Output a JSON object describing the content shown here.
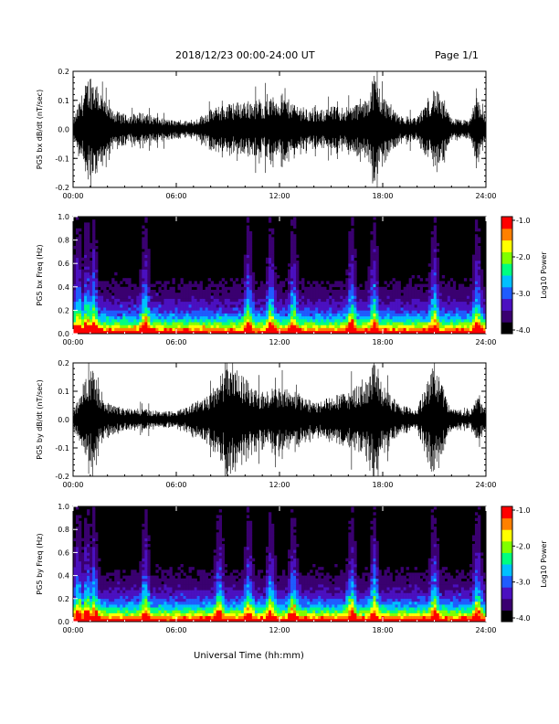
{
  "header": {
    "title": "2018/12/23  00:00-24:00 UT",
    "page": "Page 1/1"
  },
  "xlabel": "Universal Time (hh:mm)",
  "colors": {
    "trace": "#000000",
    "spectrogram_background": "#000000",
    "colormap": [
      "#000000",
      "#3a0070",
      "#4b10c0",
      "#1f5cff",
      "#00c0ff",
      "#00ff80",
      "#80ff00",
      "#ffff00",
      "#ff8000",
      "#ff0000"
    ]
  },
  "chart_data": [
    {
      "type": "line",
      "ylabel": "PG5 bx dB/dt (nT/sec)",
      "xlim": [
        0,
        24
      ],
      "ylim": [
        -0.2,
        0.2
      ],
      "xticks": [
        "00:00",
        "06:00",
        "12:00",
        "18:00",
        "24:00"
      ],
      "yticks": [
        "0.2",
        "0.1",
        "0.0",
        "-0.1",
        "-0.2"
      ],
      "grid": false,
      "envelope": {
        "hours": [
          0,
          0.5,
          1,
          1.5,
          2,
          3,
          4,
          5,
          6,
          7,
          8,
          9,
          10,
          11,
          12,
          13,
          14,
          15,
          16,
          17,
          17.5,
          18,
          19,
          20,
          21,
          22,
          23,
          23.5,
          24
        ],
        "amplitude": [
          0.03,
          0.12,
          0.2,
          0.15,
          0.08,
          0.05,
          0.06,
          0.04,
          0.03,
          0.03,
          0.07,
          0.09,
          0.1,
          0.1,
          0.12,
          0.09,
          0.06,
          0.08,
          0.08,
          0.1,
          0.2,
          0.12,
          0.05,
          0.04,
          0.15,
          0.04,
          0.03,
          0.12,
          0.05
        ]
      }
    },
    {
      "type": "heatmap",
      "ylabel": "PG5 bx Freq (Hz)",
      "xlim": [
        0,
        24
      ],
      "ylim": [
        0,
        1
      ],
      "xticks": [
        "00:00",
        "06:00",
        "12:00",
        "18:00",
        "24:00"
      ],
      "yticks": [
        "1.0",
        "0.8",
        "0.6",
        "0.4",
        "0.2",
        "0.0"
      ],
      "colorbar": {
        "label": "Log10 Power",
        "range": [
          -4.0,
          -1.0
        ],
        "ticks": [
          "-1.0",
          "-2.0",
          "-3.0",
          "-4.0"
        ]
      },
      "bright_bands_hours": [
        0.3,
        0.8,
        1.2,
        4.2,
        10.2,
        11.5,
        12.8,
        16.2,
        17.5,
        21.0,
        23.5
      ]
    },
    {
      "type": "line",
      "ylabel": "PG5 by dB/dt (nT/sec)",
      "xlim": [
        0,
        24
      ],
      "ylim": [
        -0.2,
        0.2
      ],
      "xticks": [
        "00:00",
        "06:00",
        "12:00",
        "18:00",
        "24:00"
      ],
      "yticks": [
        "0.2",
        "0.1",
        "0.0",
        "-0.1",
        "-0.2"
      ],
      "grid": false,
      "envelope": {
        "hours": [
          0,
          0.5,
          1,
          1.5,
          2,
          3,
          4,
          5,
          6,
          7,
          8,
          9,
          10,
          11,
          12,
          13,
          14,
          15,
          16,
          17,
          17.5,
          18,
          19,
          20,
          21,
          22,
          23,
          23.5,
          24
        ],
        "amplitude": [
          0.03,
          0.1,
          0.2,
          0.12,
          0.06,
          0.04,
          0.04,
          0.03,
          0.03,
          0.06,
          0.1,
          0.2,
          0.15,
          0.1,
          0.12,
          0.1,
          0.06,
          0.08,
          0.1,
          0.14,
          0.2,
          0.12,
          0.05,
          0.04,
          0.2,
          0.04,
          0.03,
          0.08,
          0.04
        ]
      }
    },
    {
      "type": "heatmap",
      "ylabel": "PG5 by Freq (Hz)",
      "xlim": [
        0,
        24
      ],
      "ylim": [
        0,
        1
      ],
      "xticks": [
        "00:00",
        "06:00",
        "12:00",
        "18:00",
        "24:00"
      ],
      "yticks": [
        "1.0",
        "0.8",
        "0.6",
        "0.4",
        "0.2",
        "0.0"
      ],
      "colorbar": {
        "label": "Log10 Power",
        "range": [
          -4.0,
          -1.0
        ],
        "ticks": [
          "-1.0",
          "-2.0",
          "-3.0",
          "-4.0"
        ]
      },
      "bright_bands_hours": [
        0.3,
        0.8,
        1.2,
        4.2,
        8.5,
        10.2,
        11.5,
        12.8,
        16.2,
        17.5,
        21.0,
        23.5
      ]
    }
  ]
}
